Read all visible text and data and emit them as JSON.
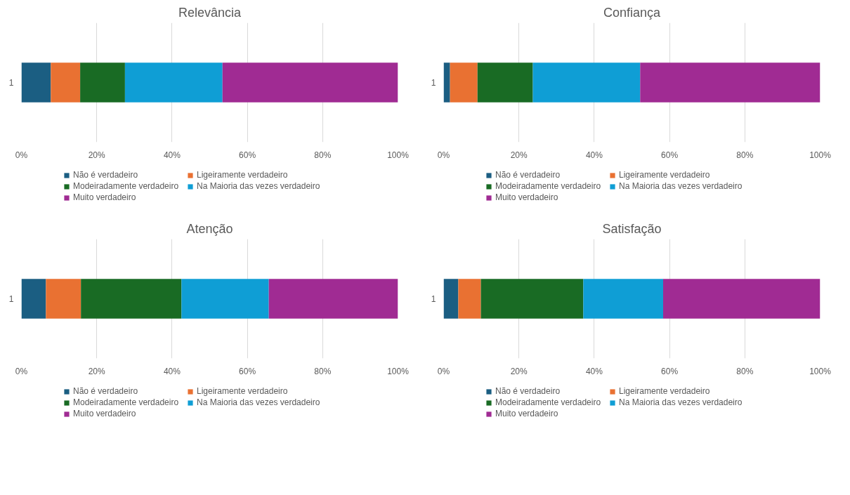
{
  "chart_data": [
    {
      "type": "bar",
      "title": "Relevância",
      "orientation": "horizontal",
      "stacked": true,
      "categories": [
        "1"
      ],
      "xlim": [
        0,
        100
      ],
      "xticks": [
        {
          "value": 0,
          "label": "0%"
        },
        {
          "value": 20,
          "label": "20%"
        },
        {
          "value": 40,
          "label": "40%"
        },
        {
          "value": 60,
          "label": "60%"
        },
        {
          "value": 80,
          "label": "80%"
        },
        {
          "value": 100,
          "label": "100%"
        }
      ],
      "grid": "x",
      "legend": "bottom",
      "series": [
        {
          "name": "Não é verdadeiro",
          "color": "#1b5e82",
          "values": [
            7.8
          ]
        },
        {
          "name": "Ligeiramente verdadeiro",
          "color": "#e97132",
          "values": [
            7.8
          ]
        },
        {
          "name": "Modeiradamente verdadeiro",
          "color": "#196b24",
          "values": [
            11.9
          ]
        },
        {
          "name": "Na Maioria das vezes verdadeiro",
          "color": "#0f9ed5",
          "values": [
            25.9
          ]
        },
        {
          "name": "Muito verdadeiro",
          "color": "#a02b93",
          "values": [
            46.6
          ]
        }
      ]
    },
    {
      "type": "bar",
      "title": "Confiança",
      "orientation": "horizontal",
      "stacked": true,
      "categories": [
        "1"
      ],
      "xlim": [
        0,
        100
      ],
      "xticks": [
        {
          "value": 0,
          "label": "0%"
        },
        {
          "value": 20,
          "label": "20%"
        },
        {
          "value": 40,
          "label": "40%"
        },
        {
          "value": 60,
          "label": "60%"
        },
        {
          "value": 80,
          "label": "80%"
        },
        {
          "value": 100,
          "label": "100%"
        }
      ],
      "grid": "x",
      "legend": "bottom",
      "series": [
        {
          "name": "Não é verdadeiro",
          "color": "#1b5e82",
          "values": [
            1.7
          ]
        },
        {
          "name": "Ligeiramente verdadeiro",
          "color": "#e97132",
          "values": [
            7.3
          ]
        },
        {
          "name": "Modeiradamente verdadeiro",
          "color": "#196b24",
          "values": [
            14.7
          ]
        },
        {
          "name": "Na Maioria das vezes verdadeiro",
          "color": "#0f9ed5",
          "values": [
            28.5
          ]
        },
        {
          "name": "Muito verdadeiro",
          "color": "#a02b93",
          "values": [
            47.8
          ]
        }
      ]
    },
    {
      "type": "bar",
      "title": "Atenção",
      "orientation": "horizontal",
      "stacked": true,
      "categories": [
        "1"
      ],
      "xlim": [
        0,
        100
      ],
      "xticks": [
        {
          "value": 0,
          "label": "0%"
        },
        {
          "value": 20,
          "label": "20%"
        },
        {
          "value": 40,
          "label": "40%"
        },
        {
          "value": 60,
          "label": "60%"
        },
        {
          "value": 80,
          "label": "80%"
        },
        {
          "value": 100,
          "label": "100%"
        }
      ],
      "grid": "x",
      "legend": "bottom",
      "series": [
        {
          "name": "Não é verdadeiro",
          "color": "#1b5e82",
          "values": [
            6.5
          ]
        },
        {
          "name": "Ligeiramente verdadeiro",
          "color": "#e97132",
          "values": [
            9.3
          ]
        },
        {
          "name": "Modeiradamente verdadeiro",
          "color": "#196b24",
          "values": [
            26.7
          ]
        },
        {
          "name": "Na Maioria das vezes verdadeiro",
          "color": "#0f9ed5",
          "values": [
            23.2
          ]
        },
        {
          "name": "Muito verdadeiro",
          "color": "#a02b93",
          "values": [
            34.3
          ]
        }
      ]
    },
    {
      "type": "bar",
      "title": "Satisfação",
      "orientation": "horizontal",
      "stacked": true,
      "categories": [
        "1"
      ],
      "xlim": [
        0,
        100
      ],
      "xticks": [
        {
          "value": 0,
          "label": "0%"
        },
        {
          "value": 20,
          "label": "20%"
        },
        {
          "value": 40,
          "label": "40%"
        },
        {
          "value": 60,
          "label": "60%"
        },
        {
          "value": 80,
          "label": "80%"
        },
        {
          "value": 100,
          "label": "100%"
        }
      ],
      "grid": "x",
      "legend": "bottom",
      "series": [
        {
          "name": "Não é verdadeiro",
          "color": "#1b5e82",
          "values": [
            3.9
          ]
        },
        {
          "name": "Ligeiramente verdadeiro",
          "color": "#e97132",
          "values": [
            6.0
          ]
        },
        {
          "name": "Modeiradamente verdadeiro",
          "color": "#196b24",
          "values": [
            27.2
          ]
        },
        {
          "name": "Na Maioria das vezes verdadeiro",
          "color": "#0f9ed5",
          "values": [
            21.2
          ]
        },
        {
          "name": "Muito verdadeiro",
          "color": "#a02b93",
          "values": [
            41.7
          ]
        }
      ]
    }
  ]
}
